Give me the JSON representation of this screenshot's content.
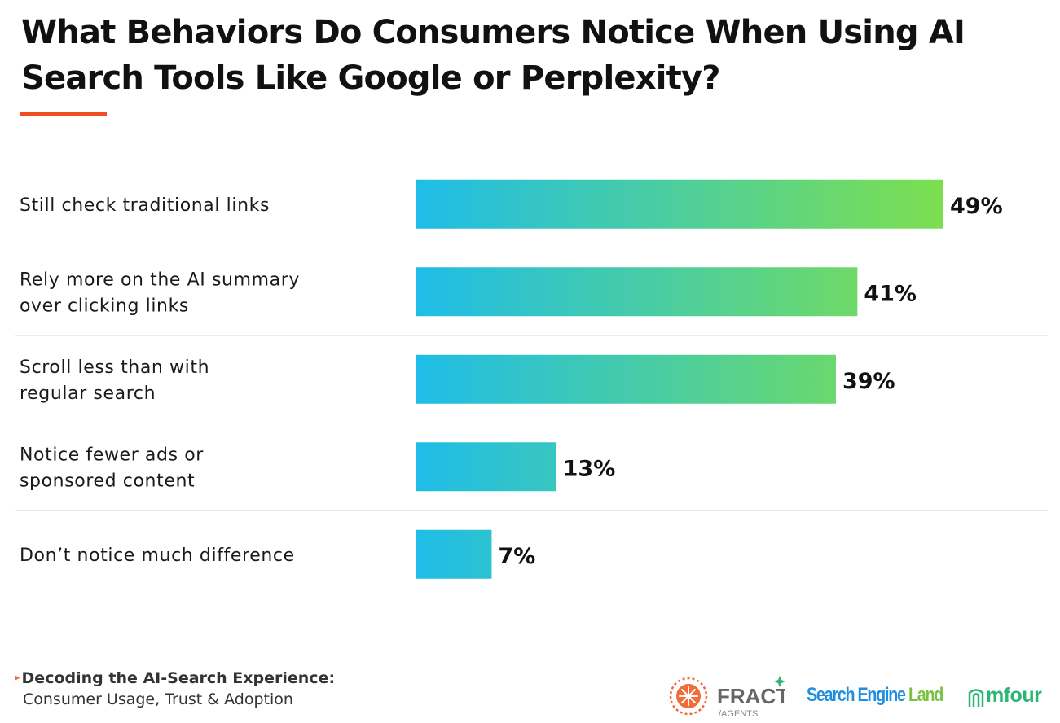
{
  "colors": {
    "accent": "#f04e23",
    "bar_gradient_start": "#1fbde8",
    "bar_gradient_end": "#7ddf4f",
    "divider": "#d4d4d4",
    "fractl_orange": "#f26b3a",
    "sel_blue": "#1e8fe0",
    "sel_green": "#7ac143",
    "mfour_green": "#2bb673"
  },
  "chart_data": {
    "type": "bar",
    "orientation": "horizontal",
    "title": "What Behaviors Do Consumers Notice When Using AI Search Tools Like Google or Perplexity?",
    "categories": [
      [
        "Still check traditional links"
      ],
      [
        "Rely more on the AI summary",
        "over clicking links"
      ],
      [
        "Scroll less than with",
        "regular search"
      ],
      [
        "Notice fewer ads or",
        "sponsored content"
      ],
      [
        "Don’t notice much difference"
      ]
    ],
    "values": [
      49,
      41,
      39,
      13,
      7
    ],
    "value_labels": [
      "49%",
      "41%",
      "39%",
      "13%",
      "7%"
    ],
    "xlim": [
      0,
      49
    ],
    "grid": false
  },
  "footer": {
    "bullet": "▸",
    "title": "Decoding the AI-Search Experience:",
    "subtitle": "Consumer Usage, Trust & Adoption"
  },
  "logos": {
    "fractl": {
      "name": "FRACTL",
      "sub": "/AGENTS",
      "icon": "fractl-snowflake-icon"
    },
    "search_engine_land": {
      "word1": "Search Engine",
      "word2": "Land"
    },
    "mfour": {
      "name": "mfour",
      "icon": "mfour-arch-icon"
    }
  }
}
